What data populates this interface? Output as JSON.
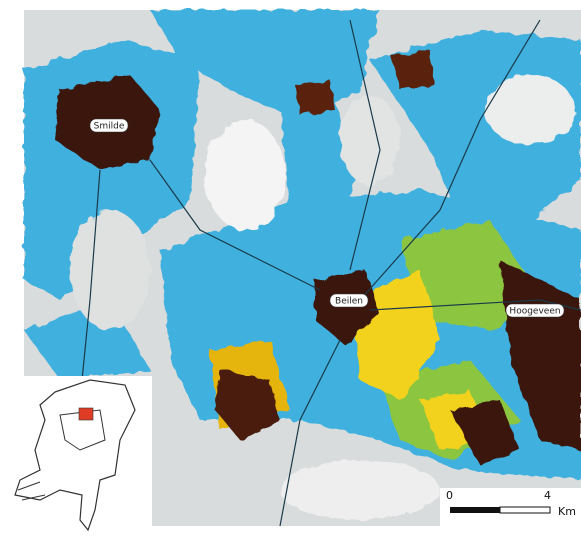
{
  "map": {
    "places": [
      {
        "label": "Smilde"
      },
      {
        "label": "Beilen"
      },
      {
        "label": "Hoogeveen"
      }
    ],
    "scale_bar": {
      "start": 0,
      "end": 4,
      "unit": "Km"
    }
  }
}
